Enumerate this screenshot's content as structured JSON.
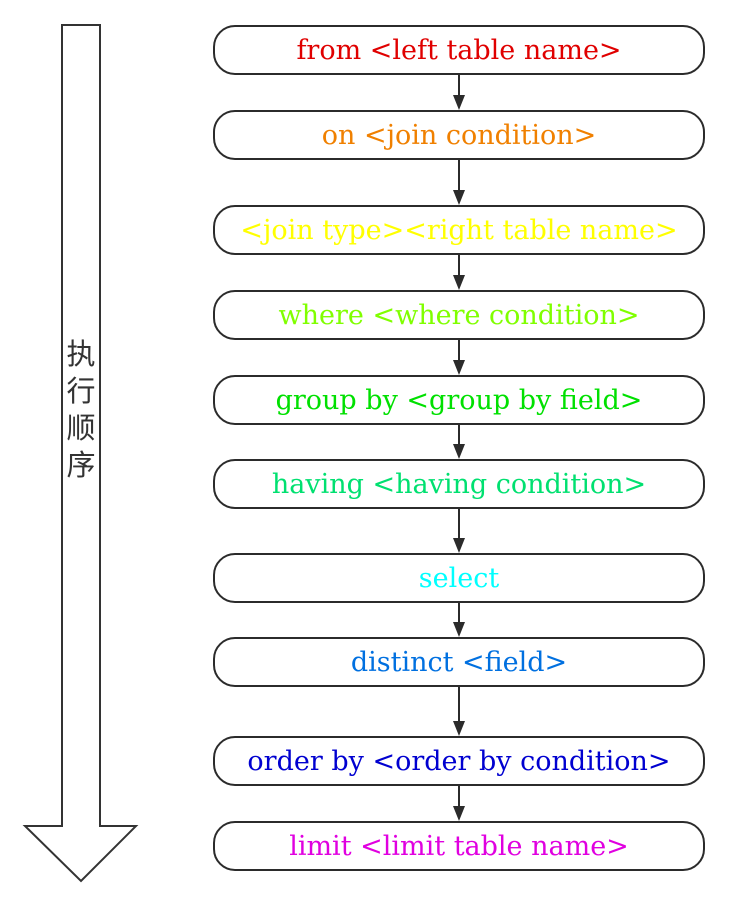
{
  "order_label": [
    "执",
    "行",
    "顺",
    "序"
  ],
  "steps": [
    {
      "text": "from <left table name>",
      "color": "#e00000"
    },
    {
      "text": "on <join condition>",
      "color": "#f08000"
    },
    {
      "text": "<join type><right table name>",
      "color": "#ffff00"
    },
    {
      "text": "where <where condition>",
      "color": "#80ff00"
    },
    {
      "text": "group by <group by field>",
      "color": "#00e000"
    },
    {
      "text": "having <having condition>",
      "color": "#00e070"
    },
    {
      "text": "select",
      "color": "#00ffff"
    },
    {
      "text": "distinct <field>",
      "color": "#0070e0"
    },
    {
      "text": "order by <order by condition>",
      "color": "#0000d0"
    },
    {
      "text": "limit <limit table name>",
      "color": "#e000e0"
    }
  ]
}
